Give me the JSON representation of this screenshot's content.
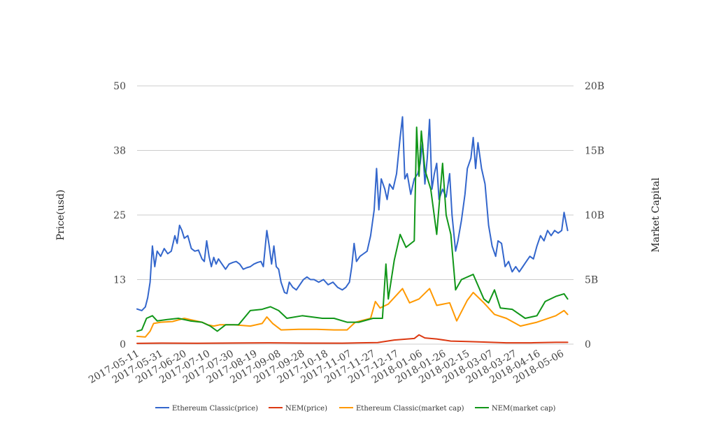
{
  "chart_data": {
    "type": "line",
    "title": "",
    "ylabel": "Price(usd)",
    "y2label": "Market Capital",
    "ylim": [
      0,
      50
    ],
    "y2lim": [
      0,
      20000000000
    ],
    "yticks": [
      "0",
      "13",
      "25",
      "38",
      "50"
    ],
    "y2ticks": [
      "0",
      "5B",
      "10B",
      "15B",
      "20B"
    ],
    "xlim": [
      "2017-05-11",
      "2018-05-16"
    ],
    "xticks": [
      "2017-05-11",
      "2017-05-31",
      "2017-06-20",
      "2017-07-10",
      "2017-07-30",
      "2017-08-19",
      "2017-09-08",
      "2017-09-28",
      "2017-10-18",
      "2017-11-07",
      "2017-11-27",
      "2017-12-17",
      "2018-01-06",
      "2018-01-26",
      "2018-02-15",
      "2018-03-07",
      "2018-03-27",
      "2018-04-16",
      "2018-05-06"
    ],
    "grid": true,
    "legend_position": "bottom",
    "series": [
      {
        "name": "Ethereum Classic(price)",
        "axis": "left",
        "color": "#3366cc",
        "points": [
          [
            "2017-05-11",
            6.8
          ],
          [
            "2017-05-15",
            6.5
          ],
          [
            "2017-05-18",
            7.2
          ],
          [
            "2017-05-20",
            9
          ],
          [
            "2017-05-22",
            12
          ],
          [
            "2017-05-24",
            19
          ],
          [
            "2017-05-26",
            15
          ],
          [
            "2017-05-28",
            18
          ],
          [
            "2017-05-31",
            17
          ],
          [
            "2017-06-03",
            18.5
          ],
          [
            "2017-06-06",
            17.5
          ],
          [
            "2017-06-09",
            18
          ],
          [
            "2017-06-12",
            21
          ],
          [
            "2017-06-14",
            19.5
          ],
          [
            "2017-06-16",
            23
          ],
          [
            "2017-06-18",
            22
          ],
          [
            "2017-06-20",
            20.5
          ],
          [
            "2017-06-23",
            21
          ],
          [
            "2017-06-26",
            18.5
          ],
          [
            "2017-06-29",
            18
          ],
          [
            "2017-07-02",
            18.2
          ],
          [
            "2017-07-05",
            16.5
          ],
          [
            "2017-07-07",
            16
          ],
          [
            "2017-07-09",
            20
          ],
          [
            "2017-07-11",
            17
          ],
          [
            "2017-07-13",
            15
          ],
          [
            "2017-07-15",
            16.8
          ],
          [
            "2017-07-17",
            15.5
          ],
          [
            "2017-07-19",
            16.5
          ],
          [
            "2017-07-22",
            15.5
          ],
          [
            "2017-07-25",
            14.5
          ],
          [
            "2017-07-28",
            15.5
          ],
          [
            "2017-07-31",
            15.8
          ],
          [
            "2017-08-03",
            16
          ],
          [
            "2017-08-06",
            15.5
          ],
          [
            "2017-08-09",
            14.5
          ],
          [
            "2017-08-12",
            14.8
          ],
          [
            "2017-08-15",
            15
          ],
          [
            "2017-08-18",
            15.5
          ],
          [
            "2017-08-21",
            15.8
          ],
          [
            "2017-08-24",
            16
          ],
          [
            "2017-08-26",
            15
          ],
          [
            "2017-08-29",
            22
          ],
          [
            "2017-08-31",
            19
          ],
          [
            "2017-09-02",
            15.5
          ],
          [
            "2017-09-04",
            19
          ],
          [
            "2017-09-06",
            15
          ],
          [
            "2017-09-08",
            14.5
          ],
          [
            "2017-09-10",
            12
          ],
          [
            "2017-09-13",
            10
          ],
          [
            "2017-09-15",
            9.8
          ],
          [
            "2017-09-17",
            12
          ],
          [
            "2017-09-20",
            11
          ],
          [
            "2017-09-23",
            10.5
          ],
          [
            "2017-09-26",
            11.5
          ],
          [
            "2017-09-29",
            12.5
          ],
          [
            "2017-10-02",
            13
          ],
          [
            "2017-10-05",
            12.5
          ],
          [
            "2017-10-08",
            12.5
          ],
          [
            "2017-10-12",
            12
          ],
          [
            "2017-10-16",
            12.5
          ],
          [
            "2017-10-20",
            11.5
          ],
          [
            "2017-10-24",
            12
          ],
          [
            "2017-10-28",
            11
          ],
          [
            "2017-11-01",
            10.5
          ],
          [
            "2017-11-04",
            11
          ],
          [
            "2017-11-07",
            12
          ],
          [
            "2017-11-09",
            15
          ],
          [
            "2017-11-11",
            19.5
          ],
          [
            "2017-11-13",
            16
          ],
          [
            "2017-11-16",
            17
          ],
          [
            "2017-11-19",
            17.5
          ],
          [
            "2017-11-22",
            18
          ],
          [
            "2017-11-25",
            21
          ],
          [
            "2017-11-28",
            26
          ],
          [
            "2017-11-30",
            34
          ],
          [
            "2017-12-02",
            26
          ],
          [
            "2017-12-04",
            32
          ],
          [
            "2017-12-07",
            30
          ],
          [
            "2017-12-09",
            28
          ],
          [
            "2017-12-11",
            31
          ],
          [
            "2017-12-14",
            30
          ],
          [
            "2017-12-17",
            33
          ],
          [
            "2017-12-20",
            40
          ],
          [
            "2017-12-22",
            44
          ],
          [
            "2017-12-24",
            32
          ],
          [
            "2017-12-26",
            33
          ],
          [
            "2017-12-29",
            29
          ],
          [
            "2018-01-01",
            32
          ],
          [
            "2018-01-04",
            33
          ],
          [
            "2018-01-06",
            35
          ],
          [
            "2018-01-08",
            39
          ],
          [
            "2018-01-10",
            31
          ],
          [
            "2018-01-12",
            36
          ],
          [
            "2018-01-14",
            43.5
          ],
          [
            "2018-01-16",
            30
          ],
          [
            "2018-01-18",
            33
          ],
          [
            "2018-01-20",
            35
          ],
          [
            "2018-01-22",
            28
          ],
          [
            "2018-01-25",
            30
          ],
          [
            "2018-01-28",
            28.5
          ],
          [
            "2018-01-31",
            33
          ],
          [
            "2018-02-02",
            25
          ],
          [
            "2018-02-05",
            18
          ],
          [
            "2018-02-07",
            20
          ],
          [
            "2018-02-10",
            24
          ],
          [
            "2018-02-13",
            29
          ],
          [
            "2018-02-15",
            34
          ],
          [
            "2018-02-18",
            36
          ],
          [
            "2018-02-20",
            40
          ],
          [
            "2018-02-22",
            34
          ],
          [
            "2018-02-24",
            39
          ],
          [
            "2018-02-27",
            34
          ],
          [
            "2018-03-02",
            31
          ],
          [
            "2018-03-05",
            23
          ],
          [
            "2018-03-08",
            19
          ],
          [
            "2018-03-11",
            17
          ],
          [
            "2018-03-13",
            20
          ],
          [
            "2018-03-16",
            19.5
          ],
          [
            "2018-03-19",
            15
          ],
          [
            "2018-03-22",
            16
          ],
          [
            "2018-03-25",
            14
          ],
          [
            "2018-03-28",
            15
          ],
          [
            "2018-03-31",
            14
          ],
          [
            "2018-04-03",
            15
          ],
          [
            "2018-04-06",
            16
          ],
          [
            "2018-04-09",
            17
          ],
          [
            "2018-04-12",
            16.5
          ],
          [
            "2018-04-15",
            19
          ],
          [
            "2018-04-18",
            21
          ],
          [
            "2018-04-21",
            20
          ],
          [
            "2018-04-24",
            22
          ],
          [
            "2018-04-27",
            21
          ],
          [
            "2018-04-30",
            22
          ],
          [
            "2018-05-03",
            21.5
          ],
          [
            "2018-05-06",
            22
          ],
          [
            "2018-05-08",
            25.5
          ],
          [
            "2018-05-11",
            22
          ]
        ]
      },
      {
        "name": "NEM(price)",
        "axis": "left",
        "color": "#dc3912",
        "points": [
          [
            "2017-05-11",
            0.15
          ],
          [
            "2017-06-01",
            0.2
          ],
          [
            "2017-07-01",
            0.18
          ],
          [
            "2017-08-01",
            0.22
          ],
          [
            "2017-09-01",
            0.25
          ],
          [
            "2017-10-01",
            0.2
          ],
          [
            "2017-11-01",
            0.19
          ],
          [
            "2017-12-01",
            0.3
          ],
          [
            "2017-12-15",
            0.8
          ],
          [
            "2018-01-01",
            1.1
          ],
          [
            "2018-01-05",
            1.8
          ],
          [
            "2018-01-10",
            1.2
          ],
          [
            "2018-01-20",
            1
          ],
          [
            "2018-02-01",
            0.6
          ],
          [
            "2018-02-15",
            0.5
          ],
          [
            "2018-03-01",
            0.4
          ],
          [
            "2018-03-20",
            0.25
          ],
          [
            "2018-04-10",
            0.25
          ],
          [
            "2018-05-01",
            0.35
          ],
          [
            "2018-05-11",
            0.35
          ]
        ]
      },
      {
        "name": "Ethereum Classic(market cap)",
        "axis": "right",
        "color": "#ff9900",
        "points": [
          [
            "2017-05-11",
            600000000
          ],
          [
            "2017-05-18",
            550000000
          ],
          [
            "2017-05-22",
            1000000000
          ],
          [
            "2017-05-25",
            1600000000
          ],
          [
            "2017-05-31",
            1700000000
          ],
          [
            "2017-06-10",
            1750000000
          ],
          [
            "2017-06-20",
            2000000000
          ],
          [
            "2017-06-25",
            1900000000
          ],
          [
            "2017-07-05",
            1700000000
          ],
          [
            "2017-07-10",
            1500000000
          ],
          [
            "2017-07-15",
            1400000000
          ],
          [
            "2017-07-20",
            1500000000
          ],
          [
            "2017-08-01",
            1500000000
          ],
          [
            "2017-08-15",
            1400000000
          ],
          [
            "2017-08-25",
            1600000000
          ],
          [
            "2017-08-29",
            2100000000
          ],
          [
            "2017-09-03",
            1600000000
          ],
          [
            "2017-09-10",
            1100000000
          ],
          [
            "2017-09-25",
            1150000000
          ],
          [
            "2017-10-10",
            1150000000
          ],
          [
            "2017-10-25",
            1100000000
          ],
          [
            "2017-11-05",
            1100000000
          ],
          [
            "2017-11-12",
            1700000000
          ],
          [
            "2017-11-25",
            2000000000
          ],
          [
            "2017-11-29",
            3300000000
          ],
          [
            "2017-12-03",
            2800000000
          ],
          [
            "2017-12-10",
            3100000000
          ],
          [
            "2017-12-22",
            4300000000
          ],
          [
            "2017-12-28",
            3200000000
          ],
          [
            "2018-01-05",
            3500000000
          ],
          [
            "2018-01-14",
            4300000000
          ],
          [
            "2018-01-20",
            3000000000
          ],
          [
            "2018-01-31",
            3200000000
          ],
          [
            "2018-02-06",
            1800000000
          ],
          [
            "2018-02-15",
            3400000000
          ],
          [
            "2018-02-20",
            4000000000
          ],
          [
            "2018-03-01",
            3200000000
          ],
          [
            "2018-03-10",
            2300000000
          ],
          [
            "2018-03-20",
            2000000000
          ],
          [
            "2018-04-01",
            1400000000
          ],
          [
            "2018-04-15",
            1700000000
          ],
          [
            "2018-05-01",
            2200000000
          ],
          [
            "2018-05-08",
            2600000000
          ],
          [
            "2018-05-11",
            2300000000
          ]
        ]
      },
      {
        "name": "NEM(market cap)",
        "axis": "right",
        "color": "#109618",
        "points": [
          [
            "2017-05-11",
            1000000000
          ],
          [
            "2017-05-15",
            1100000000
          ],
          [
            "2017-05-19",
            2000000000
          ],
          [
            "2017-05-24",
            2200000000
          ],
          [
            "2017-05-28",
            1800000000
          ],
          [
            "2017-06-05",
            1900000000
          ],
          [
            "2017-06-15",
            2000000000
          ],
          [
            "2017-06-25",
            1800000000
          ],
          [
            "2017-07-05",
            1700000000
          ],
          [
            "2017-07-12",
            1400000000
          ],
          [
            "2017-07-18",
            1000000000
          ],
          [
            "2017-07-25",
            1500000000
          ],
          [
            "2017-08-05",
            1500000000
          ],
          [
            "2017-08-15",
            2600000000
          ],
          [
            "2017-08-25",
            2700000000
          ],
          [
            "2017-09-01",
            2900000000
          ],
          [
            "2017-09-08",
            2600000000
          ],
          [
            "2017-09-15",
            2000000000
          ],
          [
            "2017-09-28",
            2200000000
          ],
          [
            "2017-10-15",
            2000000000
          ],
          [
            "2017-10-25",
            2000000000
          ],
          [
            "2017-11-05",
            1700000000
          ],
          [
            "2017-11-15",
            1700000000
          ],
          [
            "2017-11-27",
            2000000000
          ],
          [
            "2017-12-05",
            2000000000
          ],
          [
            "2017-12-08",
            6200000000
          ],
          [
            "2017-12-10",
            3500000000
          ],
          [
            "2017-12-15",
            6500000000
          ],
          [
            "2017-12-20",
            8500000000
          ],
          [
            "2017-12-25",
            7500000000
          ],
          [
            "2018-01-01",
            8000000000
          ],
          [
            "2018-01-03",
            16800000000
          ],
          [
            "2018-01-05",
            13000000000
          ],
          [
            "2018-01-07",
            16500000000
          ],
          [
            "2018-01-10",
            13500000000
          ],
          [
            "2018-01-15",
            12000000000
          ],
          [
            "2018-01-20",
            8500000000
          ],
          [
            "2018-01-25",
            14000000000
          ],
          [
            "2018-01-28",
            10000000000
          ],
          [
            "2018-02-01",
            8500000000
          ],
          [
            "2018-02-05",
            4200000000
          ],
          [
            "2018-02-10",
            5000000000
          ],
          [
            "2018-02-20",
            5400000000
          ],
          [
            "2018-03-01",
            3500000000
          ],
          [
            "2018-03-05",
            3200000000
          ],
          [
            "2018-03-10",
            4200000000
          ],
          [
            "2018-03-15",
            2800000000
          ],
          [
            "2018-03-25",
            2700000000
          ],
          [
            "2018-04-05",
            2000000000
          ],
          [
            "2018-04-15",
            2200000000
          ],
          [
            "2018-04-22",
            3300000000
          ],
          [
            "2018-05-01",
            3700000000
          ],
          [
            "2018-05-08",
            3900000000
          ],
          [
            "2018-05-11",
            3500000000
          ]
        ]
      }
    ]
  }
}
